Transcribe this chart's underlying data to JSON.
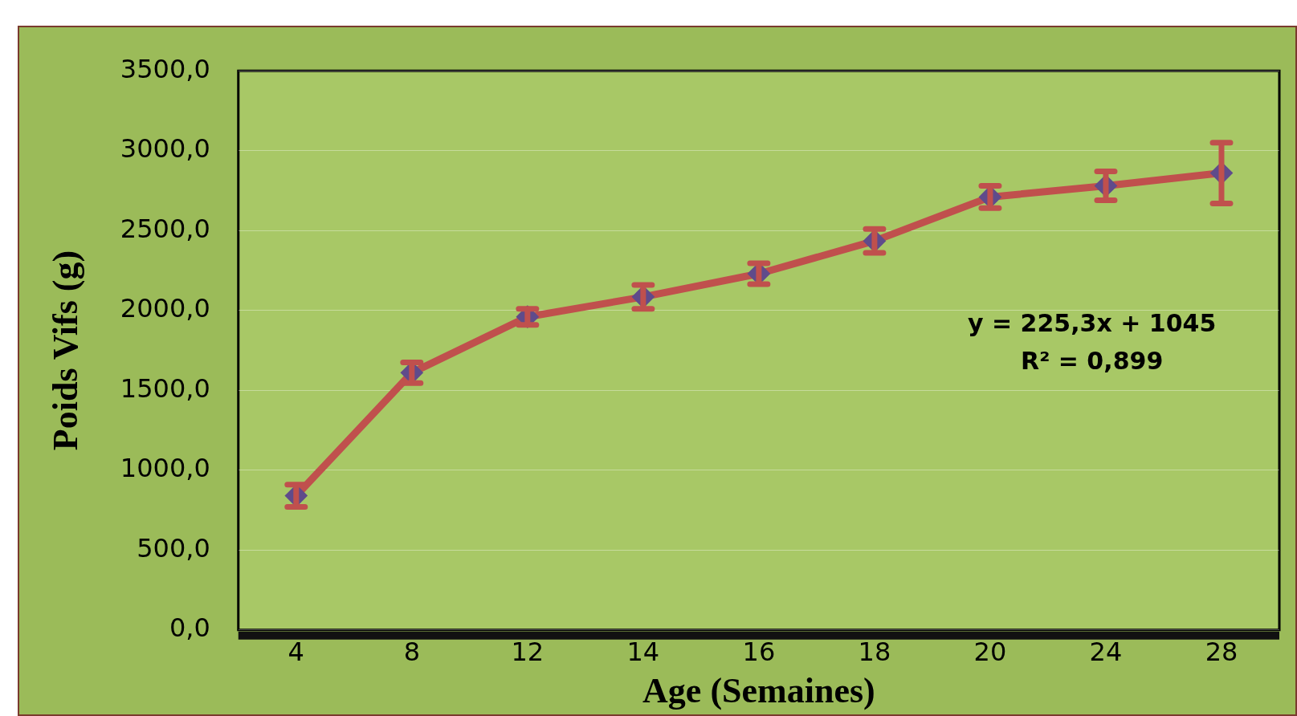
{
  "chart_data": {
    "type": "line",
    "xlabel": "Age (Semaines)",
    "ylabel": "Poids Vifs (g)",
    "categories": [
      "4",
      "8",
      "12",
      "14",
      "16",
      "18",
      "20",
      "24",
      "28"
    ],
    "series": [
      {
        "color": "#c0504d",
        "values": [
          840,
          1610,
          1960,
          2085,
          2230,
          2435,
          2710,
          2780,
          2860
        ],
        "errors": [
          70,
          65,
          50,
          75,
          65,
          75,
          70,
          90,
          190
        ]
      }
    ],
    "ylim": [
      0,
      3500
    ],
    "yticks": [
      {
        "value": 0,
        "label": "0,0"
      },
      {
        "value": 500,
        "label": "500,0"
      },
      {
        "value": 1000,
        "label": "1000,0"
      },
      {
        "value": 1500,
        "label": "1500,0"
      },
      {
        "value": 2000,
        "label": "2000,0"
      },
      {
        "value": 2500,
        "label": "2500,0"
      },
      {
        "value": 3000,
        "label": "3000,0"
      },
      {
        "value": 3500,
        "label": "3500,0"
      }
    ],
    "grid": "y",
    "legend": false,
    "marker": "diamond",
    "line_style": "solid",
    "annotations": [
      "y = 225,3x + 1045",
      "R² = 0,899"
    ]
  }
}
